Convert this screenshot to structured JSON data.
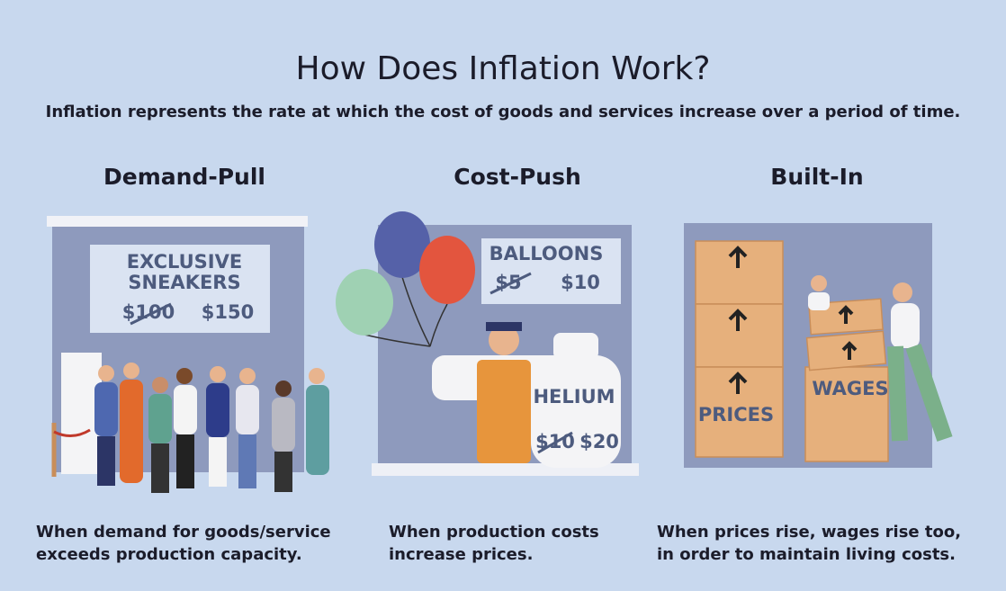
{
  "title": "How Does Inflation Work?",
  "subtitle": "Inflation represents the rate at which the cost of goods and services increase over a period of time.",
  "panels": [
    {
      "heading": "Demand-Pull",
      "sign": [
        "EXCLUSIVE",
        "SNEAKERS"
      ],
      "old_price": "$100",
      "new_price": "$150",
      "caption": [
        "When demand for goods/service",
        "exceeds production capacity."
      ]
    },
    {
      "heading": "Cost-Push",
      "sign": [
        "BALLOONS"
      ],
      "old_price": "$5",
      "new_price": "$10",
      "tank_label": "HELIUM",
      "tank_old_price": "$10",
      "tank_new_price": "$20",
      "caption": [
        "When production costs",
        "increase prices."
      ]
    },
    {
      "heading": "Built-In",
      "left_label": "PRICES",
      "right_label": "WAGES",
      "caption": [
        "When prices rise, wages rise too,",
        "in order to maintain living costs."
      ]
    }
  ]
}
